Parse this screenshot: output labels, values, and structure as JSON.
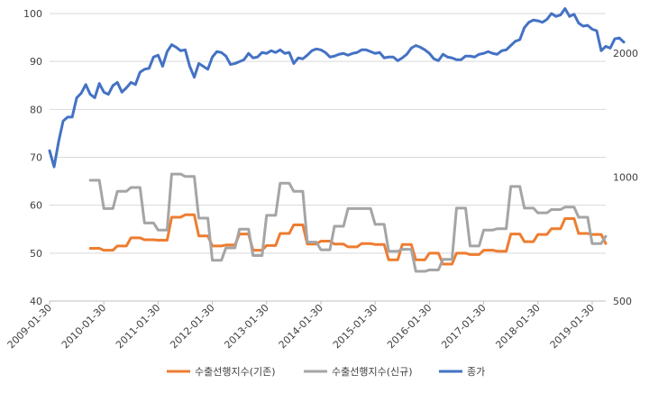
{
  "chart_data": {
    "type": "line",
    "title": "",
    "xlabel": "",
    "ylabel": "",
    "x_tick_labels": [
      "2009-01-30",
      "2010-01-30",
      "2011-01-30",
      "2012-01-30",
      "2013-01-30",
      "2014-01-30",
      "2015-01-30",
      "2016-01-30",
      "2017-01-30",
      "2018-01-30",
      "2019-01-30"
    ],
    "y_left_ticks": [
      "40",
      "50",
      "60",
      "70",
      "80",
      "90",
      "100"
    ],
    "y_right_ticks": [
      "500",
      "1000",
      "2000"
    ],
    "y_left_range": [
      40,
      100
    ],
    "y_right_scale": "log",
    "y_right_range": [
      500,
      2500
    ],
    "gridlines": "horizontal",
    "legend_position": "bottom",
    "series": [
      {
        "name": "수출선행지수(기존)",
        "axis": "left",
        "color": "#ED7D31",
        "start": "2009-10",
        "values": [
          51,
          51,
          51,
          50.6,
          50.6,
          50.6,
          51.5,
          51.5,
          51.5,
          53.2,
          53.2,
          53.2,
          52.8,
          52.8,
          52.8,
          52.7,
          52.7,
          52.7,
          57.5,
          57.5,
          57.5,
          58,
          58,
          58,
          53.6,
          53.6,
          53.6,
          51.5,
          51.5,
          51.5,
          51.7,
          51.7,
          51.7,
          54,
          54,
          54,
          50.6,
          50.6,
          50.6,
          51.6,
          51.6,
          51.6,
          54.1,
          54.1,
          54.1,
          55.9,
          55.9,
          55.9,
          51.9,
          51.9,
          51.9,
          52.5,
          52.5,
          52.5,
          51.9,
          51.9,
          51.9,
          51.3,
          51.3,
          51.3,
          52,
          52,
          52,
          51.8,
          51.8,
          51.8,
          48.6,
          48.6,
          48.6,
          51.8,
          51.8,
          51.8,
          48.6,
          48.6,
          48.6,
          50,
          50,
          50,
          47.7,
          47.7,
          47.7,
          50,
          50,
          50,
          49.7,
          49.7,
          49.7,
          50.6,
          50.6,
          50.6,
          50.4,
          50.4,
          50.4,
          54,
          54,
          54,
          52.4,
          52.4,
          52.4,
          53.9,
          53.9,
          53.9,
          55.1,
          55.1,
          55.1,
          57.2,
          57.2,
          57.2,
          54.1,
          54.1,
          54.1,
          53.9,
          53.9,
          53.9,
          52
        ]
      },
      {
        "name": "수출선행지수(신규)",
        "axis": "left",
        "color": "#A5A5A5",
        "start": "2009-10",
        "values": [
          65.2,
          65.2,
          65.2,
          59.3,
          59.3,
          59.3,
          62.9,
          62.9,
          62.9,
          63.7,
          63.7,
          63.7,
          56.3,
          56.3,
          56.3,
          54.8,
          54.8,
          54.8,
          66.5,
          66.5,
          66.5,
          66,
          66,
          66,
          57.3,
          57.3,
          57.3,
          48.5,
          48.5,
          48.5,
          51.1,
          51.1,
          51.1,
          55,
          55,
          55,
          49.5,
          49.5,
          49.5,
          57.9,
          57.9,
          57.9,
          64.6,
          64.6,
          64.6,
          62.9,
          62.9,
          62.9,
          52.3,
          52.3,
          52.3,
          50.7,
          50.7,
          50.7,
          55.6,
          55.6,
          55.6,
          59.3,
          59.3,
          59.3,
          59.3,
          59.3,
          59.3,
          56,
          56,
          56,
          50.4,
          50.4,
          50.4,
          50.8,
          50.8,
          50.8,
          46.2,
          46.2,
          46.2,
          46.5,
          46.5,
          46.5,
          48.7,
          48.7,
          48.7,
          59.4,
          59.4,
          59.4,
          51.5,
          51.5,
          51.5,
          54.8,
          54.8,
          54.8,
          55.1,
          55.1,
          55.1,
          63.9,
          63.9,
          63.9,
          59.4,
          59.4,
          59.4,
          58.4,
          58.4,
          58.4,
          59.1,
          59.1,
          59.1,
          59.6,
          59.6,
          59.6,
          57.5,
          57.5,
          57.5,
          52,
          52,
          52,
          53.5
        ]
      },
      {
        "name": "종가",
        "axis": "right",
        "color": "#4472C4",
        "start": "2009-01",
        "values": [
          1160,
          1060,
          1220,
          1370,
          1400,
          1400,
          1560,
          1600,
          1680,
          1590,
          1560,
          1690,
          1610,
          1590,
          1670,
          1700,
          1610,
          1650,
          1700,
          1680,
          1800,
          1830,
          1840,
          1960,
          1980,
          1860,
          2020,
          2100,
          2070,
          2030,
          2040,
          1860,
          1750,
          1890,
          1860,
          1830,
          1960,
          2020,
          2010,
          1970,
          1880,
          1890,
          1910,
          1930,
          2000,
          1950,
          1960,
          2010,
          2000,
          2030,
          2010,
          2040,
          2000,
          2010,
          1890,
          1950,
          1940,
          1980,
          2030,
          2050,
          2040,
          2010,
          1960,
          1970,
          1990,
          2000,
          1980,
          2000,
          2010,
          2040,
          2040,
          2020,
          2000,
          2010,
          1950,
          1960,
          1960,
          1920,
          1950,
          1990,
          2060,
          2090,
          2070,
          2040,
          2000,
          1940,
          1920,
          1990,
          1960,
          1950,
          1930,
          1930,
          1970,
          1970,
          1960,
          1990,
          2000,
          2020,
          2000,
          1990,
          2030,
          2040,
          2090,
          2140,
          2160,
          2310,
          2380,
          2410,
          2400,
          2380,
          2420,
          2500,
          2460,
          2480,
          2570,
          2460,
          2490,
          2370,
          2330,
          2340,
          2290,
          2270,
          2030,
          2080,
          2060,
          2170,
          2180,
          2130
        ]
      }
    ]
  }
}
